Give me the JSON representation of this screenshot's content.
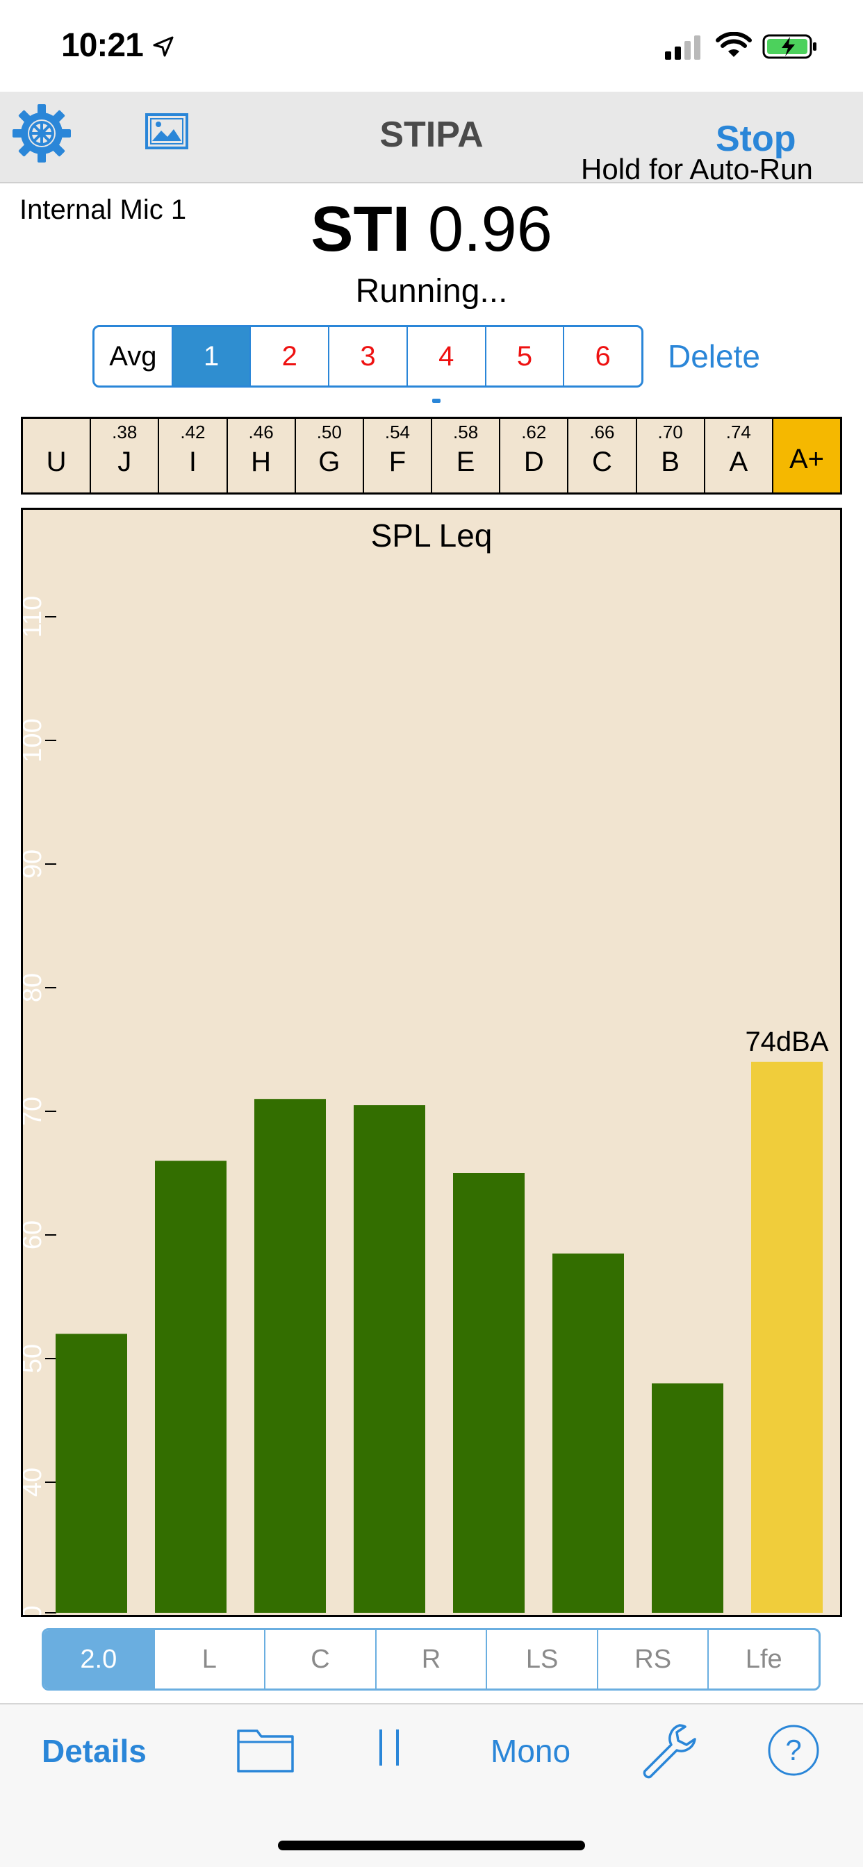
{
  "status_bar": {
    "time": "10:21"
  },
  "nav": {
    "title": "STIPA",
    "stop_label": "Stop",
    "autorun_hint": "Hold for Auto-Run"
  },
  "header": {
    "mic": "Internal Mic 1",
    "sti_label": "STI",
    "sti_value": "0.96",
    "status": "Running..."
  },
  "runs": {
    "items": [
      "Avg",
      "1",
      "2",
      "3",
      "4",
      "5",
      "6"
    ],
    "selected_index": 1,
    "delete_label": "Delete"
  },
  "sti_scale": [
    {
      "grade": "U",
      "value": ""
    },
    {
      "grade": "J",
      "value": ".38"
    },
    {
      "grade": "I",
      "value": ".42"
    },
    {
      "grade": "H",
      "value": ".46"
    },
    {
      "grade": "G",
      "value": ".50"
    },
    {
      "grade": "F",
      "value": ".54"
    },
    {
      "grade": "E",
      "value": ".58"
    },
    {
      "grade": "D",
      "value": ".62"
    },
    {
      "grade": "C",
      "value": ".66"
    },
    {
      "grade": "B",
      "value": ".70"
    },
    {
      "grade": "A",
      "value": ".74"
    },
    {
      "grade": "A+",
      "value": ""
    }
  ],
  "sti_scale_active": "A+",
  "chart_data": {
    "type": "bar",
    "title": "SPL Leq",
    "y_ticks": [
      "0",
      "40",
      "50",
      "60",
      "70",
      "80",
      "90",
      "100",
      "110"
    ],
    "values": [
      52,
      66,
      71,
      70.5,
      65,
      58.5,
      48,
      74
    ],
    "summary_label": "74dBA",
    "colors": {
      "bands": "#336e00",
      "total": "#f0cd3b",
      "background": "#f1e4d0"
    }
  },
  "channels": {
    "items": [
      "2.0",
      "L",
      "C",
      "R",
      "LS",
      "RS",
      "Lfe"
    ],
    "selected_index": 0
  },
  "toolbar": {
    "details_label": "Details",
    "mono_label": "Mono"
  },
  "colors": {
    "accent": "#2a86d8",
    "scale_active": "#f5b800"
  }
}
